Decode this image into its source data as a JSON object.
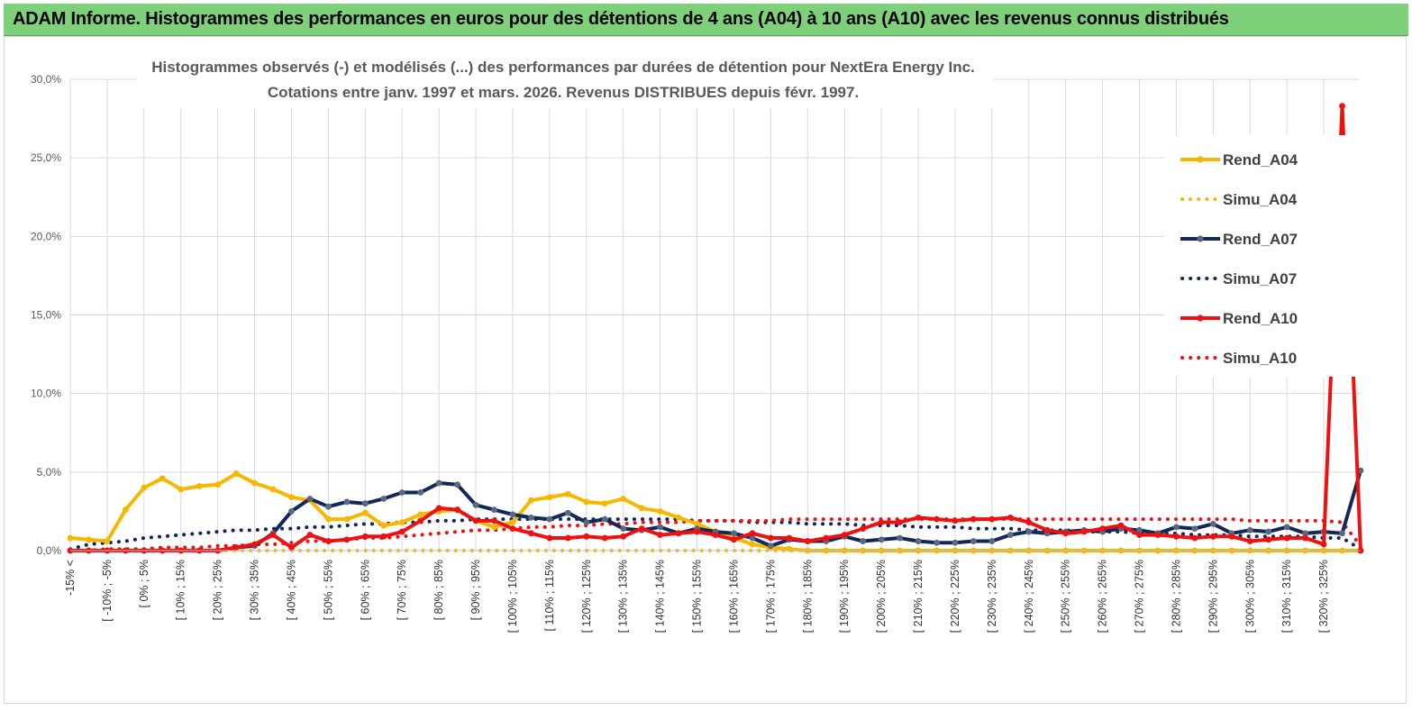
{
  "banner": {
    "title": "ADAM Informe. Histogrammes des performances en euros pour des détentions de 4 ans (A04) à 10 ans (A10) avec les revenus connus distribués"
  },
  "colors": {
    "banner_bg": "#7ed07a",
    "yellow": "#f5b700",
    "navy": "#12285a",
    "red": "#ee1111",
    "grid": "#d9d9d9"
  },
  "chart_data": {
    "type": "line",
    "title": "Histogrammes observés (-) et modélisés (...) des performances par durées de détention pour NextEra Energy Inc.",
    "subtitle": "Cotations entre janv. 1997 et mars. 2026. Revenus DISTRIBUES depuis févr. 1997.",
    "xlabel": "",
    "ylabel": "",
    "ylim": [
      0,
      30
    ],
    "y_ticks": [
      "0,0%",
      "5,0%",
      "10,0%",
      "15,0%",
      "20,0%",
      "25,0%",
      "30,0%"
    ],
    "grid": true,
    "legend_position": "right",
    "x_labels": [
      "-15% <",
      "[ -10% ; -5%",
      "[ 0% ; 5%",
      "[ 10% ; 15%",
      "[ 20% ; 25%",
      "[ 30% ; 35%",
      "[ 40% ; 45%",
      "[ 50% ; 55%",
      "[ 60% ; 65%",
      "[ 70% ; 75%",
      "[ 80% ; 85%",
      "[ 90% ; 95%",
      "[ 100% ; 105%",
      "[ 110% ; 115%",
      "[ 120% ; 125%",
      "[ 130% ; 135%",
      "[ 140% ; 145%",
      "[ 150% ; 155%",
      "[ 160% ; 165%",
      "[ 170% ; 175%",
      "[ 180% ; 185%",
      "[ 190% ; 195%",
      "[ 200% ; 205%",
      "[ 210% ; 215%",
      "[ 220% ; 225%",
      "[ 230% ; 235%",
      "[ 240% ; 245%",
      "[ 250% ; 255%",
      "[ 260% ; 265%",
      "[ 270% ; 275%",
      "[ 280% ; 285%",
      "[ 290% ; 295%",
      "[ 300% ; 305%",
      "[ 310% ; 315%",
      "[ 320% ; 325%"
    ],
    "series": [
      {
        "name": "Rend_A04",
        "style": "solid",
        "color": "#f5b700",
        "values": [
          0.8,
          0.7,
          0.6,
          2.6,
          4.0,
          4.6,
          3.9,
          4.1,
          4.2,
          4.9,
          4.3,
          3.9,
          3.4,
          3.2,
          2.0,
          2.0,
          2.4,
          1.6,
          1.8,
          2.3,
          2.5,
          2.6,
          1.9,
          1.5,
          1.8,
          3.2,
          3.4,
          3.6,
          3.1,
          3.0,
          3.3,
          2.7,
          2.5,
          2.1,
          1.7,
          1.2,
          0.8,
          0.4,
          0.2,
          0.1,
          0.0,
          0.0,
          0.0,
          0.0,
          0.0,
          0.0,
          0.0,
          0.0,
          0.0,
          0.0,
          0.0,
          0.0,
          0.0,
          0.0,
          0.0,
          0.0,
          0.0,
          0.0,
          0.0,
          0.0,
          0.0,
          0.0,
          0.0,
          0.0,
          0.0,
          0.0,
          0.0,
          0.0,
          0.0,
          0.0,
          0.0
        ]
      },
      {
        "name": "Simu_A04",
        "style": "dotted",
        "color": "#f5b700",
        "values": [
          0.0,
          0.0,
          0.0,
          0.0,
          0.0,
          0.0,
          0.0,
          0.0,
          0.0,
          0.0,
          0.0,
          0.0,
          0.0,
          0.0,
          0.0,
          0.0,
          0.0,
          0.0,
          0.0,
          0.0,
          0.0,
          0.0,
          0.0,
          0.0,
          0.0,
          0.0,
          0.0,
          0.0,
          0.0,
          0.0,
          0.0,
          0.0,
          0.0,
          0.0,
          0.0,
          0.0,
          0.0,
          0.0,
          0.0,
          0.0,
          0.0,
          0.0,
          0.0,
          0.0,
          0.0,
          0.0,
          0.0,
          0.0,
          0.0,
          0.0,
          0.0,
          0.0,
          0.0,
          0.0,
          0.0,
          0.0,
          0.0,
          0.0,
          0.0,
          0.0,
          0.0,
          0.0,
          0.0,
          0.0,
          0.0,
          0.0,
          0.0,
          0.0,
          0.0,
          0.0,
          0.0
        ]
      },
      {
        "name": "Rend_A07",
        "style": "solid",
        "color": "#12285a",
        "values": [
          0.0,
          0.0,
          0.0,
          0.0,
          0.0,
          0.0,
          0.0,
          0.0,
          0.0,
          0.2,
          0.3,
          1.1,
          2.5,
          3.3,
          2.8,
          3.1,
          3.0,
          3.3,
          3.7,
          3.7,
          4.3,
          4.2,
          2.9,
          2.6,
          2.3,
          2.1,
          2.0,
          2.4,
          1.8,
          2.0,
          1.4,
          1.3,
          1.5,
          1.1,
          1.4,
          1.2,
          1.1,
          0.8,
          0.3,
          0.7,
          0.6,
          0.6,
          0.9,
          0.6,
          0.7,
          0.8,
          0.6,
          0.5,
          0.5,
          0.6,
          0.6,
          1.0,
          1.2,
          1.1,
          1.2,
          1.3,
          1.2,
          1.4,
          1.3,
          1.1,
          1.5,
          1.4,
          1.7,
          1.1,
          1.3,
          1.2,
          1.5,
          1.1,
          1.2,
          1.1,
          5.1
        ]
      },
      {
        "name": "Simu_A07",
        "style": "dotted",
        "color": "#12285a",
        "values": [
          0.1,
          0.4,
          0.5,
          0.6,
          0.8,
          0.9,
          1.0,
          1.1,
          1.2,
          1.3,
          1.3,
          1.4,
          1.4,
          1.5,
          1.5,
          1.6,
          1.7,
          1.7,
          1.8,
          1.8,
          1.9,
          1.9,
          2.0,
          2.0,
          2.0,
          2.0,
          2.0,
          2.0,
          2.0,
          2.0,
          2.0,
          2.0,
          2.0,
          2.0,
          1.9,
          1.9,
          1.9,
          1.8,
          1.8,
          1.8,
          1.7,
          1.7,
          1.7,
          1.6,
          1.6,
          1.6,
          1.5,
          1.5,
          1.5,
          1.4,
          1.4,
          1.4,
          1.3,
          1.3,
          1.3,
          1.2,
          1.2,
          1.2,
          1.1,
          1.1,
          1.1,
          1.0,
          1.0,
          1.0,
          0.9,
          0.9,
          0.9,
          0.9,
          0.8,
          0.8,
          0.1
        ]
      },
      {
        "name": "Rend_A10",
        "style": "solid",
        "color": "#ee1111",
        "values": [
          0.0,
          0.0,
          0.0,
          0.0,
          0.0,
          0.0,
          0.0,
          0.0,
          0.0,
          0.2,
          0.4,
          1.0,
          0.2,
          1.0,
          0.6,
          0.7,
          0.9,
          0.9,
          1.2,
          1.9,
          2.7,
          2.6,
          1.9,
          1.9,
          1.4,
          1.1,
          0.8,
          0.8,
          0.9,
          0.8,
          0.9,
          1.4,
          1.0,
          1.1,
          1.2,
          1.0,
          0.7,
          1.1,
          0.8,
          0.8,
          0.6,
          0.8,
          1.0,
          1.4,
          1.8,
          1.8,
          2.1,
          2.0,
          1.9,
          2.0,
          2.0,
          2.1,
          1.8,
          1.3,
          1.1,
          1.2,
          1.4,
          1.6,
          1.0,
          1.0,
          0.9,
          0.8,
          0.9,
          0.9,
          0.6,
          0.7,
          0.8,
          0.8,
          0.4,
          28.3,
          0.0
        ]
      },
      {
        "name": "Simu_A10",
        "style": "dotted",
        "color": "#ee1111",
        "values": [
          0.0,
          0.0,
          0.1,
          0.1,
          0.1,
          0.2,
          0.2,
          0.2,
          0.3,
          0.3,
          0.4,
          0.4,
          0.5,
          0.6,
          0.6,
          0.7,
          0.8,
          0.8,
          0.9,
          1.0,
          1.1,
          1.2,
          1.3,
          1.3,
          1.4,
          1.5,
          1.5,
          1.6,
          1.6,
          1.7,
          1.7,
          1.8,
          1.8,
          1.8,
          1.9,
          1.9,
          1.9,
          1.9,
          1.9,
          2.0,
          2.0,
          2.0,
          2.0,
          2.0,
          2.0,
          2.0,
          2.0,
          2.0,
          2.0,
          2.0,
          2.0,
          2.0,
          2.0,
          2.0,
          2.0,
          2.0,
          2.0,
          2.0,
          2.0,
          2.0,
          2.0,
          2.0,
          2.0,
          2.0,
          1.9,
          1.9,
          1.9,
          1.9,
          1.9,
          1.8,
          0.3
        ]
      }
    ]
  }
}
